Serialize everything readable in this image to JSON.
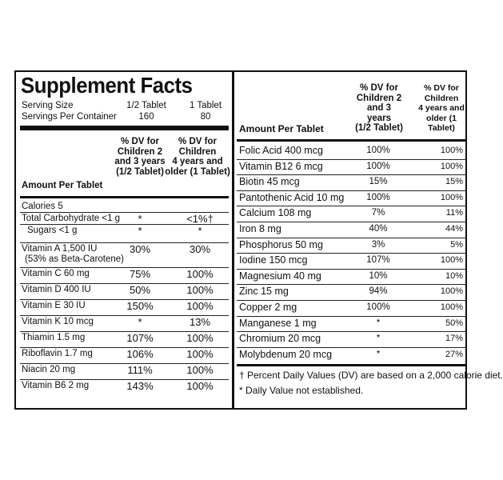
{
  "title": "Supplement Facts",
  "serving": [
    {
      "label": "Serving Size",
      "child": "1/2 Tablet",
      "adult": "1 Tablet"
    },
    {
      "label": "Servings Per Container",
      "child": "160",
      "adult": "80"
    }
  ],
  "left_header": {
    "amount": "Amount Per Tablet",
    "col1": [
      "% DV for",
      "Children 2",
      "and 3 years",
      "(1/2 Tablet)"
    ],
    "col2": [
      "% DV for",
      "Children",
      "4 years and",
      "older (1 Tablet)"
    ]
  },
  "left_rows": [
    {
      "name": "Calories 5",
      "c1": "",
      "c2": ""
    },
    {
      "name": "Total Carbohydrate <1 g",
      "c1": "*",
      "c2": "<1%†"
    },
    {
      "name": "Sugars <1 g",
      "c1": "*",
      "c2": "*"
    },
    {
      "name": "Vitamin A 1,500 IU",
      "sub": "(53% as Beta-Carotene)",
      "c1": "30%",
      "c2": "30%"
    },
    {
      "name": "Vitamin C 60 mg",
      "c1": "75%",
      "c2": "100%"
    },
    {
      "name": "Vitamin D 400 IU",
      "c1": "50%",
      "c2": "100%"
    },
    {
      "name": "Vitamin E 30 IU",
      "c1": "150%",
      "c2": "100%"
    },
    {
      "name": "Vitamin K 10 mcg",
      "c1": "*",
      "c2": "13%"
    },
    {
      "name": "Thiamin 1.5 mg",
      "c1": "107%",
      "c2": "100%"
    },
    {
      "name": "Riboflavin 1.7 mg",
      "c1": "106%",
      "c2": "100%"
    },
    {
      "name": "Niacin 20 mg",
      "c1": "111%",
      "c2": "100%"
    },
    {
      "name": "Vitamin B6 2 mg",
      "c1": "143%",
      "c2": "100%"
    }
  ],
  "right_header": {
    "amount": "Amount Per Tablet",
    "col1": [
      "% DV for",
      "Children 2",
      "and 3 years",
      "(1/2 Tablet)"
    ],
    "col2": [
      "% DV for",
      "Children",
      "4 years and",
      "older (1 Tablet)"
    ]
  },
  "right_rows": [
    {
      "name": "Folic Acid 400 mcg",
      "c1": "100%",
      "c2": "100%"
    },
    {
      "name": "Vitamin B12 6 mcg",
      "c1": "100%",
      "c2": "100%"
    },
    {
      "name": "Biotin 45 mcg",
      "c1": "15%",
      "c2": "15%"
    },
    {
      "name": "Pantothenic Acid 10 mg",
      "c1": "100%",
      "c2": "100%"
    },
    {
      "name": "Calcium 108 mg",
      "c1": "7%",
      "c2": "11%"
    },
    {
      "name": "Iron 8 mg",
      "c1": "40%",
      "c2": "44%"
    },
    {
      "name": "Phosphorus 50 mg",
      "c1": "3%",
      "c2": "5%"
    },
    {
      "name": "Iodine 150 mcg",
      "c1": "107%",
      "c2": "100%"
    },
    {
      "name": "Magnesium 40 mg",
      "c1": "10%",
      "c2": "10%"
    },
    {
      "name": "Zinc 15 mg",
      "c1": "94%",
      "c2": "100%"
    },
    {
      "name": "Copper 2 mg",
      "c1": "100%",
      "c2": "100%"
    },
    {
      "name": "Manganese 1 mg",
      "c1": "*",
      "c2": "50%"
    },
    {
      "name": "Chromium 20 mcg",
      "c1": "*",
      "c2": "17%"
    },
    {
      "name": "Molybdenum 20 mcg",
      "c1": "*",
      "c2": "27%"
    }
  ],
  "footnotes": [
    "† Percent Daily Values (DV) are based on a 2,000 calorie diet.",
    "* Daily Value not established."
  ]
}
